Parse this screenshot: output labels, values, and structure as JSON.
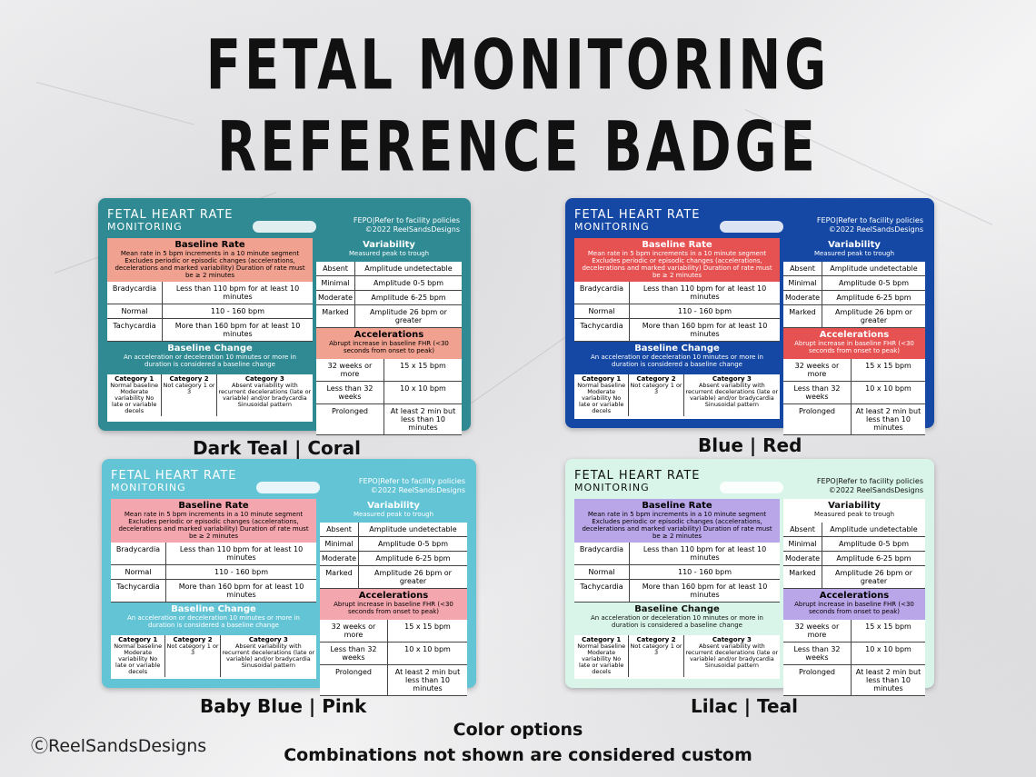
{
  "title": {
    "line1": "FETAL MONITORING",
    "line2": "REFERENCE BADGE"
  },
  "badge_text": {
    "title1": "FETAL HEART RATE",
    "title2": "MONITORING",
    "fepo": "FEPO|Refer to facility policies",
    "copyright": "©2022 ReelSandsDesigns",
    "baseline_title": "Baseline Rate",
    "baseline_desc": "Mean rate in 5 bpm increments in a 10 minute segment Excludes periodic or episodic changes (accelerations, decelerations and marked variability) Duration of rate must be ≥ 2 minutes",
    "rows": [
      {
        "k": "Bradycardia",
        "v": "Less than 110 bpm for at least 10 minutes"
      },
      {
        "k": "Normal",
        "v": "110 - 160 bpm"
      },
      {
        "k": "Tachycardia",
        "v": "More than 160 bpm for at least 10 minutes"
      }
    ],
    "change_title": "Baseline Change",
    "change_desc": "An acceleration or deceleration 10 minutes or more in duration is considered a baseline change",
    "categories": [
      {
        "h": "Category 1",
        "t": "Normal baseline Moderate variability No late or variable decels"
      },
      {
        "h": "Category 2",
        "t": "Not category 1 or 3"
      },
      {
        "h": "Category 3",
        "t": "Absent variability with recurrent decelerations (late or variable) and/or bradycardia Sinusoidal pattern"
      }
    ],
    "variability_title": "Variability",
    "variability_sub": "Measured peak to trough",
    "variability_rows": [
      {
        "k": "Absent",
        "v": "Amplitude undetectable"
      },
      {
        "k": "Minimal",
        "v": "Amplitude 0-5 bpm"
      },
      {
        "k": "Moderate",
        "v": "Amplitude 6-25 bpm"
      },
      {
        "k": "Marked",
        "v": "Amplitude 26 bpm or greater"
      }
    ],
    "accel_title": "Accelerations",
    "accel_desc": "Abrupt increase in baseline FHR (<30 seconds from onset to peak)",
    "accel_rows": [
      {
        "k": "32 weeks or more",
        "v": "15 x 15 bpm"
      },
      {
        "k": "Less than 32 weeks",
        "v": "10 x 10 bpm"
      },
      {
        "k": "Prolonged",
        "v": "At least 2 min but less than 10 minutes"
      }
    ]
  },
  "badges": [
    {
      "name": "Dark Teal | Coral",
      "frame": "#2f8a93",
      "header": "#2f8a93",
      "accent": "#f0a190"
    },
    {
      "name": "Blue | Red",
      "frame": "#1548a5",
      "header": "#1548a5",
      "accent": "#e65252"
    },
    {
      "name": "Baby Blue | Pink",
      "frame": "#63c4d6",
      "header": "#63c4d6",
      "accent": "#f3a6ae"
    },
    {
      "name": "Lilac | Teal",
      "frame": "#d9f5e9",
      "header": "#d9f5e9",
      "accent": "#b9a6e8"
    }
  ],
  "copyright": "ⒸReelSandsDesigns",
  "footer": {
    "line1": "Color options",
    "line2": "Combinations not shown are considered custom"
  }
}
